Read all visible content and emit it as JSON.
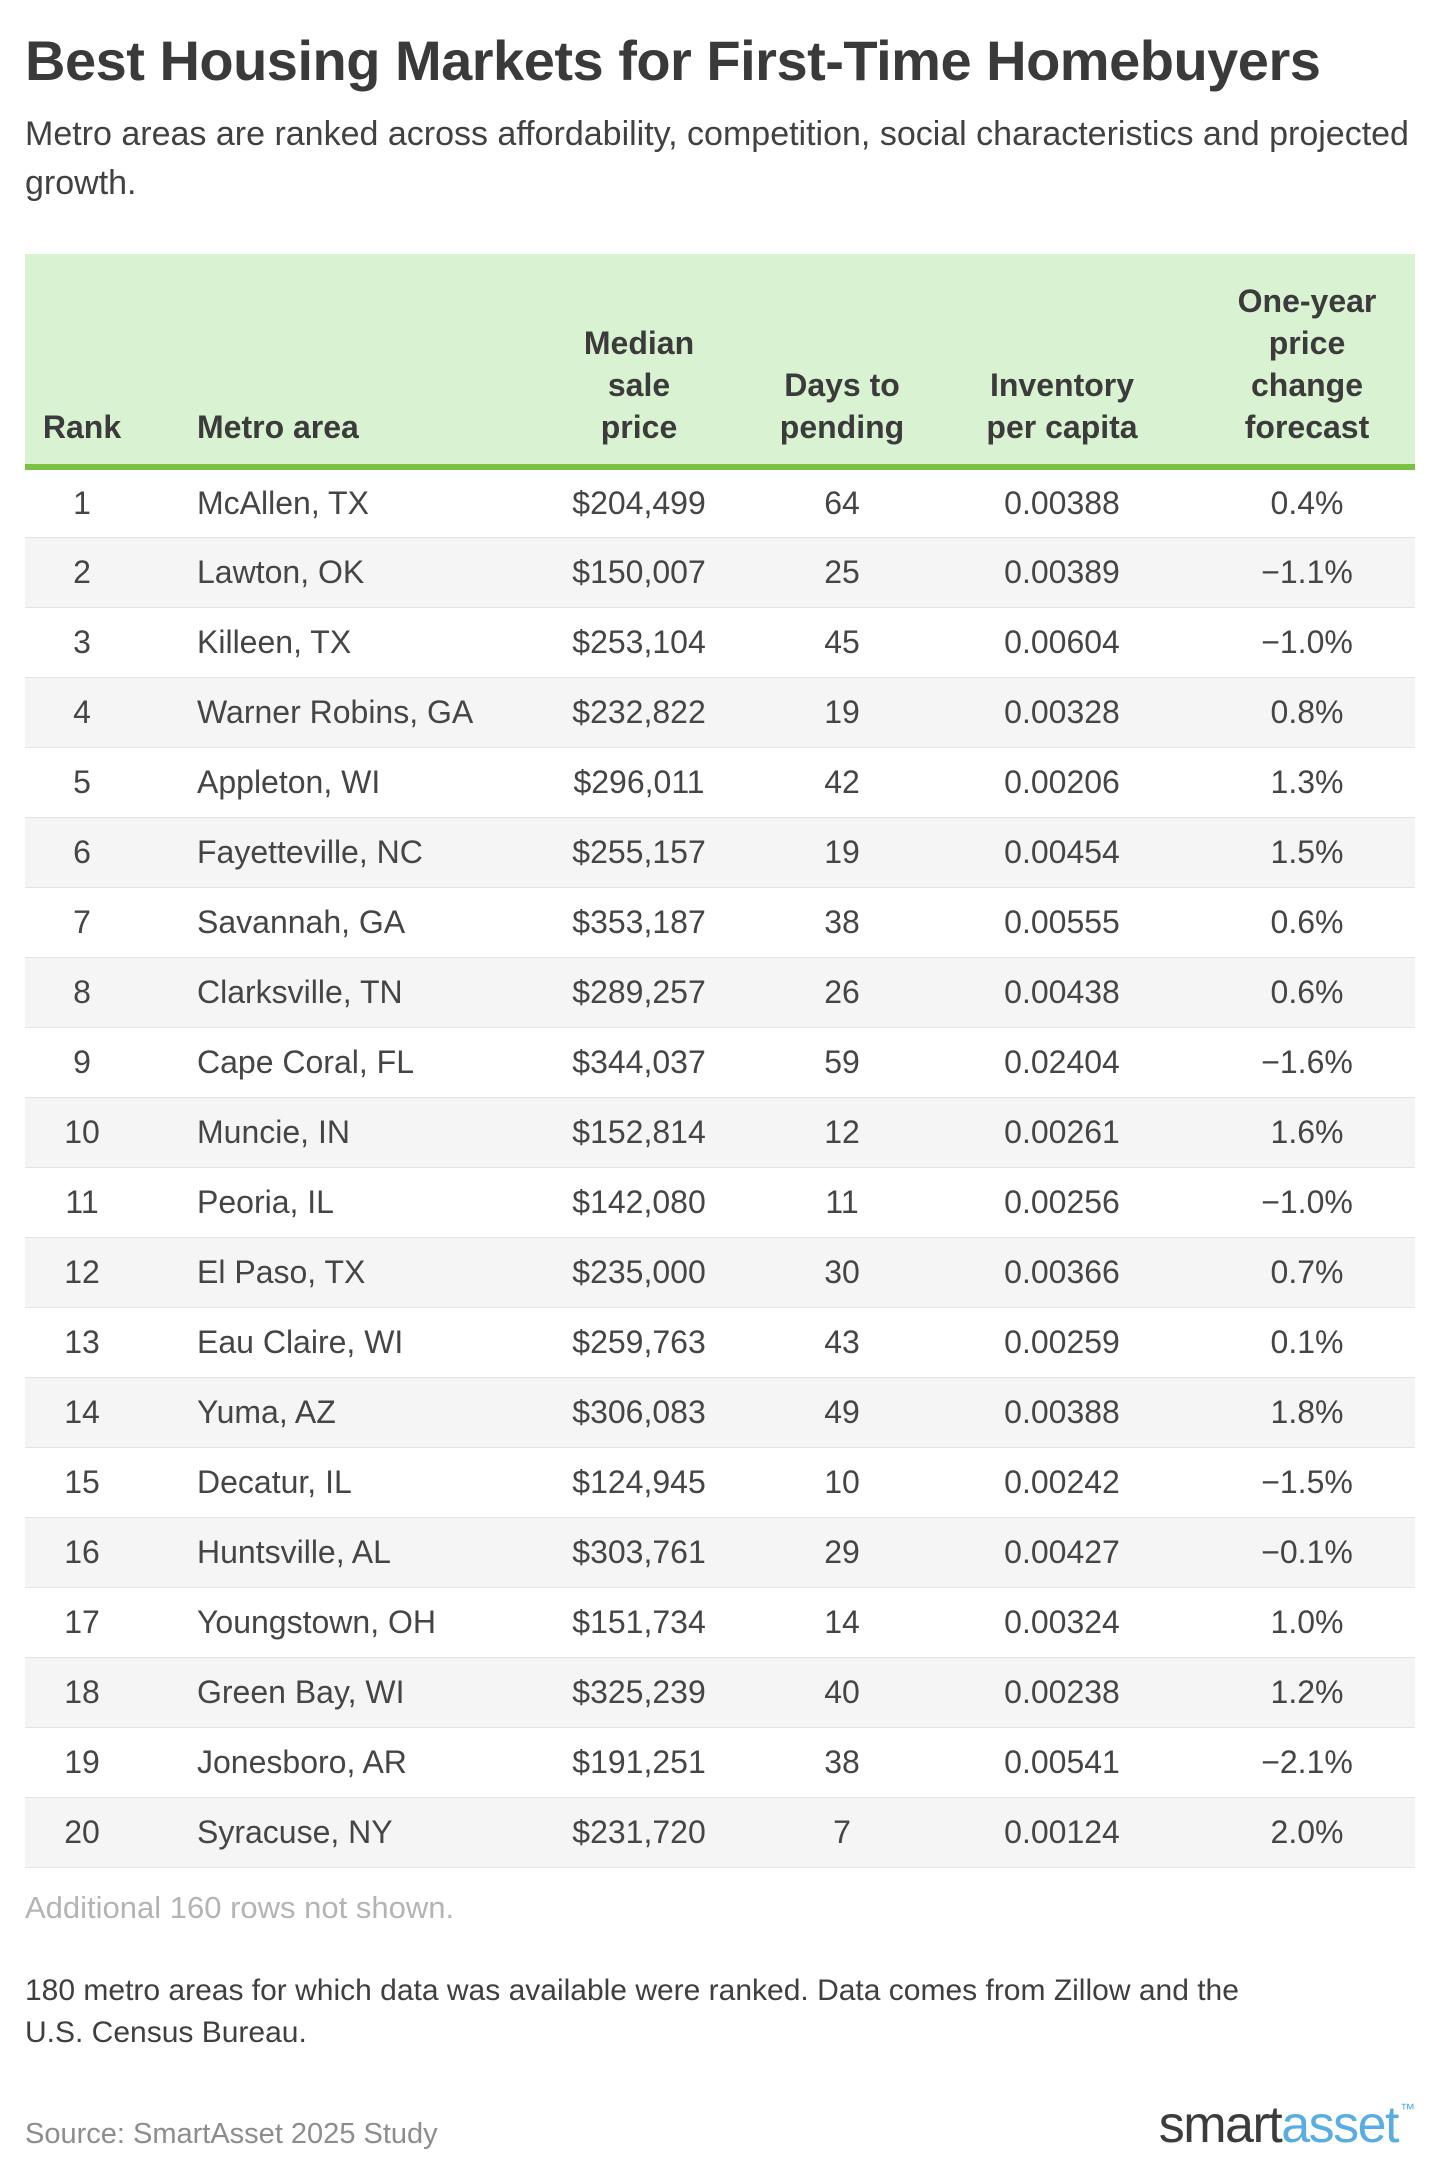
{
  "chart_data": {
    "type": "table",
    "title": "Best Housing Markets for First-Time Homebuyers",
    "subtitle": "Metro areas are ranked across affordability, competition, social characteristics and projected growth.",
    "columns": [
      "Rank",
      "Metro area",
      "Median sale price",
      "Days to pending",
      "Inventory per capita",
      "One-year price change forecast"
    ],
    "rows": [
      [
        "1",
        "McAllen, TX",
        "$204,499",
        "64",
        "0.00388",
        "0.4%"
      ],
      [
        "2",
        "Lawton, OK",
        "$150,007",
        "25",
        "0.00389",
        "−1.1%"
      ],
      [
        "3",
        "Killeen, TX",
        "$253,104",
        "45",
        "0.00604",
        "−1.0%"
      ],
      [
        "4",
        "Warner Robins, GA",
        "$232,822",
        "19",
        "0.00328",
        "0.8%"
      ],
      [
        "5",
        "Appleton, WI",
        "$296,011",
        "42",
        "0.00206",
        "1.3%"
      ],
      [
        "6",
        "Fayetteville, NC",
        "$255,157",
        "19",
        "0.00454",
        "1.5%"
      ],
      [
        "7",
        "Savannah, GA",
        "$353,187",
        "38",
        "0.00555",
        "0.6%"
      ],
      [
        "8",
        "Clarksville, TN",
        "$289,257",
        "26",
        "0.00438",
        "0.6%"
      ],
      [
        "9",
        "Cape Coral, FL",
        "$344,037",
        "59",
        "0.02404",
        "−1.6%"
      ],
      [
        "10",
        "Muncie, IN",
        "$152,814",
        "12",
        "0.00261",
        "1.6%"
      ],
      [
        "11",
        "Peoria, IL",
        "$142,080",
        "11",
        "0.00256",
        "−1.0%"
      ],
      [
        "12",
        "El Paso, TX",
        "$235,000",
        "30",
        "0.00366",
        "0.7%"
      ],
      [
        "13",
        "Eau Claire, WI",
        "$259,763",
        "43",
        "0.00259",
        "0.1%"
      ],
      [
        "14",
        "Yuma, AZ",
        "$306,083",
        "49",
        "0.00388",
        "1.8%"
      ],
      [
        "15",
        "Decatur, IL",
        "$124,945",
        "10",
        "0.00242",
        "−1.5%"
      ],
      [
        "16",
        "Huntsville, AL",
        "$303,761",
        "29",
        "0.00427",
        "−0.1%"
      ],
      [
        "17",
        "Youngstown, OH",
        "$151,734",
        "14",
        "0.00324",
        "1.0%"
      ],
      [
        "18",
        "Green Bay, WI",
        "$325,239",
        "40",
        "0.00238",
        "1.2%"
      ],
      [
        "19",
        "Jonesboro, AR",
        "$191,251",
        "38",
        "0.00541",
        "−2.1%"
      ],
      [
        "20",
        "Syracuse, NY",
        "$231,720",
        "7",
        "0.00124",
        "2.0%"
      ]
    ],
    "layout": {
      "header_align": "bottom",
      "stripe_even_rows": true,
      "legend": "none",
      "grid": "horizontal-row-separators"
    }
  },
  "footer": {
    "rows_note": "Additional 160 rows not shown.",
    "methodology": "180 metro areas for which data was available were ranked. Data comes from Zillow and the U.S. Census Bureau.",
    "source": "Source: SmartAsset 2025 Study",
    "logo": {
      "part1": "smart",
      "part2": "asset",
      "tm": "™"
    }
  },
  "colors": {
    "header_bg": "#d9f2d1",
    "header_border": "#7bc143",
    "stripe": "#f5f5f5",
    "logo_blue": "#5aade0"
  }
}
